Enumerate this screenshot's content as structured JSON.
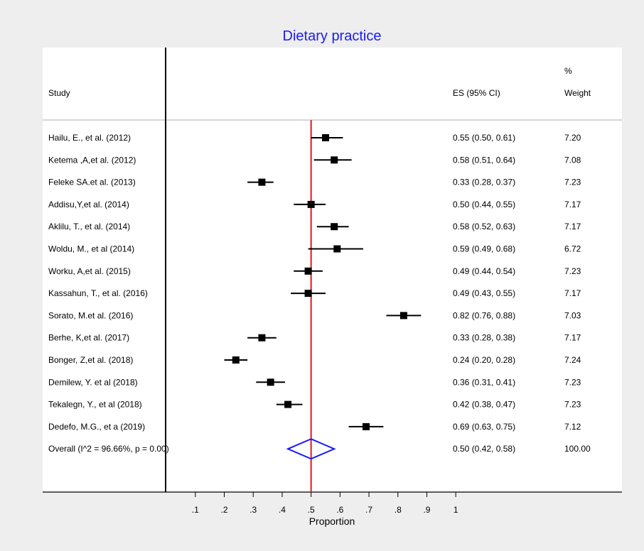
{
  "chart_data": {
    "type": "forest",
    "title": "Dietary practice",
    "xlabel": "Proportion",
    "xlim": [
      0.1,
      1.0
    ],
    "xticks": [
      0.1,
      0.2,
      0.3,
      0.4,
      0.5,
      0.6,
      0.7,
      0.8,
      0.9,
      1.0
    ],
    "xtick_labels": [
      ".1",
      ".2",
      ".3",
      ".4",
      ".5",
      ".6",
      ".7",
      ".8",
      ".9",
      "1"
    ],
    "reference_line": 0.5,
    "headers": {
      "study": "Study",
      "es": "ES (95% CI)",
      "weight_top": "%",
      "weight": "Weight"
    },
    "studies": [
      {
        "label": "Hailu, E., et al. (2012)",
        "es": 0.55,
        "lo": 0.5,
        "hi": 0.61,
        "es_text": "0.55 (0.50, 0.61)",
        "weight": "7.20"
      },
      {
        "label": "Ketema ,A,et al. (2012)",
        "es": 0.58,
        "lo": 0.51,
        "hi": 0.64,
        "es_text": "0.58 (0.51, 0.64)",
        "weight": "7.08"
      },
      {
        "label": "Feleke SA.et al. (2013)",
        "es": 0.33,
        "lo": 0.28,
        "hi": 0.37,
        "es_text": "0.33 (0.28, 0.37)",
        "weight": "7.23"
      },
      {
        "label": "Addisu,Y,et al. (2014)",
        "es": 0.5,
        "lo": 0.44,
        "hi": 0.55,
        "es_text": "0.50 (0.44, 0.55)",
        "weight": "7.17"
      },
      {
        "label": "Aklilu, T., et al. (2014)",
        "es": 0.58,
        "lo": 0.52,
        "hi": 0.63,
        "es_text": "0.58 (0.52, 0.63)",
        "weight": "7.17"
      },
      {
        "label": "Woldu, M., et al (2014)",
        "es": 0.59,
        "lo": 0.49,
        "hi": 0.68,
        "es_text": "0.59 (0.49, 0.68)",
        "weight": "6.72"
      },
      {
        "label": "Worku, A,et al. (2015)",
        "es": 0.49,
        "lo": 0.44,
        "hi": 0.54,
        "es_text": "0.49 (0.44, 0.54)",
        "weight": "7.23"
      },
      {
        "label": "Kassahun, T., et al. (2016)",
        "es": 0.49,
        "lo": 0.43,
        "hi": 0.55,
        "es_text": "0.49 (0.43, 0.55)",
        "weight": "7.17"
      },
      {
        "label": "Sorato, M.et al. (2016)",
        "es": 0.82,
        "lo": 0.76,
        "hi": 0.88,
        "es_text": "0.82 (0.76, 0.88)",
        "weight": "7.03"
      },
      {
        "label": "Berhe, K,et al. (2017)",
        "es": 0.33,
        "lo": 0.28,
        "hi": 0.38,
        "es_text": "0.33 (0.28, 0.38)",
        "weight": "7.17"
      },
      {
        "label": "Bonger, Z,et al. (2018)",
        "es": 0.24,
        "lo": 0.2,
        "hi": 0.28,
        "es_text": "0.24 (0.20, 0.28)",
        "weight": "7.24"
      },
      {
        "label": "Demilew, Y. et al (2018)",
        "es": 0.36,
        "lo": 0.31,
        "hi": 0.41,
        "es_text": "0.36 (0.31, 0.41)",
        "weight": "7.23"
      },
      {
        "label": "Tekalegn, Y., et al (2018)",
        "es": 0.42,
        "lo": 0.38,
        "hi": 0.47,
        "es_text": "0.42 (0.38, 0.47)",
        "weight": "7.23"
      },
      {
        "label": "Dedefo, M.G., et a (2019)",
        "es": 0.69,
        "lo": 0.63,
        "hi": 0.75,
        "es_text": "0.69 (0.63, 0.75)",
        "weight": "7.12"
      }
    ],
    "overall": {
      "label": "Overall  (I^2 = 96.66%, p = 0.00)",
      "es": 0.5,
      "lo": 0.42,
      "hi": 0.58,
      "es_text": "0.50 (0.42, 0.58)",
      "weight": "100.00"
    },
    "colors": {
      "background": "#eeeeee",
      "plot_bg": "#ffffff",
      "title": "#1a1aff",
      "reference_line": "#e8141b",
      "diamond": "#1a1aff",
      "marker": "#000000"
    }
  }
}
